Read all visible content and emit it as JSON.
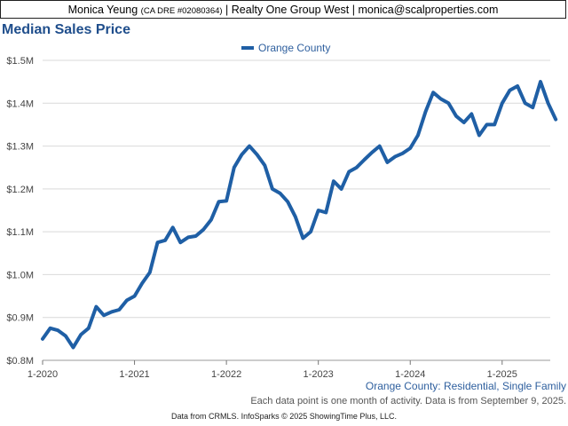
{
  "header": {
    "agent_name": "Monica Yeung",
    "license": "(CA DRE #02080364)",
    "separator": "|",
    "brokerage": "Realty One Group West",
    "email": "monica@scalproperties.com"
  },
  "footnote": "Each data point is one month of activity. Data is from September 9, 2025.",
  "source_note": "Data from CRMLS. InfoSparks © 2025 ShowingTime Plus, LLC.",
  "chart_data": {
    "type": "line",
    "title": "Median Sales Price",
    "subtitle": "Orange County: Residential, Single Family",
    "xlabel": "",
    "ylabel": "",
    "ylim": [
      800000,
      1500000
    ],
    "y_ticks": [
      800000,
      900000,
      1000000,
      1100000,
      1200000,
      1300000,
      1400000,
      1500000
    ],
    "y_tick_labels": [
      "$0.8M",
      "$0.9M",
      "$1.0M",
      "$1.1M",
      "$1.2M",
      "$1.3M",
      "$1.4M",
      "$1.5M"
    ],
    "x_ticks": [
      "2020-01",
      "2021-01",
      "2022-01",
      "2023-01",
      "2024-01",
      "2025-01"
    ],
    "x_tick_labels": [
      "1-2020",
      "1-2021",
      "1-2022",
      "1-2023",
      "1-2024",
      "1-2025"
    ],
    "grid": "horizontal",
    "legend": "top-center",
    "colors": {
      "series": "#1f5fa5",
      "title": "#1f4e8c",
      "subtitle": "#2e5f9e",
      "grid": "#d9d9d9"
    },
    "series": [
      {
        "name": "Orange County",
        "x": [
          "2020-01",
          "2020-02",
          "2020-03",
          "2020-04",
          "2020-05",
          "2020-06",
          "2020-07",
          "2020-08",
          "2020-09",
          "2020-10",
          "2020-11",
          "2020-12",
          "2021-01",
          "2021-02",
          "2021-03",
          "2021-04",
          "2021-05",
          "2021-06",
          "2021-07",
          "2021-08",
          "2021-09",
          "2021-10",
          "2021-11",
          "2021-12",
          "2022-01",
          "2022-02",
          "2022-03",
          "2022-04",
          "2022-05",
          "2022-06",
          "2022-07",
          "2022-08",
          "2022-09",
          "2022-10",
          "2022-11",
          "2022-12",
          "2023-01",
          "2023-02",
          "2023-03",
          "2023-04",
          "2023-05",
          "2023-06",
          "2023-07",
          "2023-08",
          "2023-09",
          "2023-10",
          "2023-11",
          "2023-12",
          "2024-01",
          "2024-02",
          "2024-03",
          "2024-04",
          "2024-05",
          "2024-06",
          "2024-07",
          "2024-08",
          "2024-09",
          "2024-10",
          "2024-11",
          "2024-12",
          "2025-01",
          "2025-02",
          "2025-03",
          "2025-04",
          "2025-05",
          "2025-06",
          "2025-07",
          "2025-08"
        ],
        "values": [
          850000,
          875000,
          870000,
          857000,
          830000,
          860000,
          875000,
          925000,
          905000,
          913000,
          918000,
          940000,
          950000,
          980000,
          1005000,
          1075000,
          1080000,
          1110000,
          1075000,
          1087000,
          1090000,
          1105000,
          1128000,
          1170000,
          1172000,
          1250000,
          1280000,
          1300000,
          1280000,
          1255000,
          1200000,
          1190000,
          1170000,
          1135000,
          1085000,
          1100000,
          1150000,
          1145000,
          1218000,
          1200000,
          1240000,
          1250000,
          1268000,
          1285000,
          1300000,
          1262000,
          1275000,
          1283000,
          1295000,
          1325000,
          1380000,
          1425000,
          1410000,
          1400000,
          1370000,
          1355000,
          1375000,
          1325000,
          1350000,
          1350000,
          1400000,
          1430000,
          1440000,
          1400000,
          1390000,
          1450000,
          1400000,
          1362000
        ]
      }
    ]
  }
}
